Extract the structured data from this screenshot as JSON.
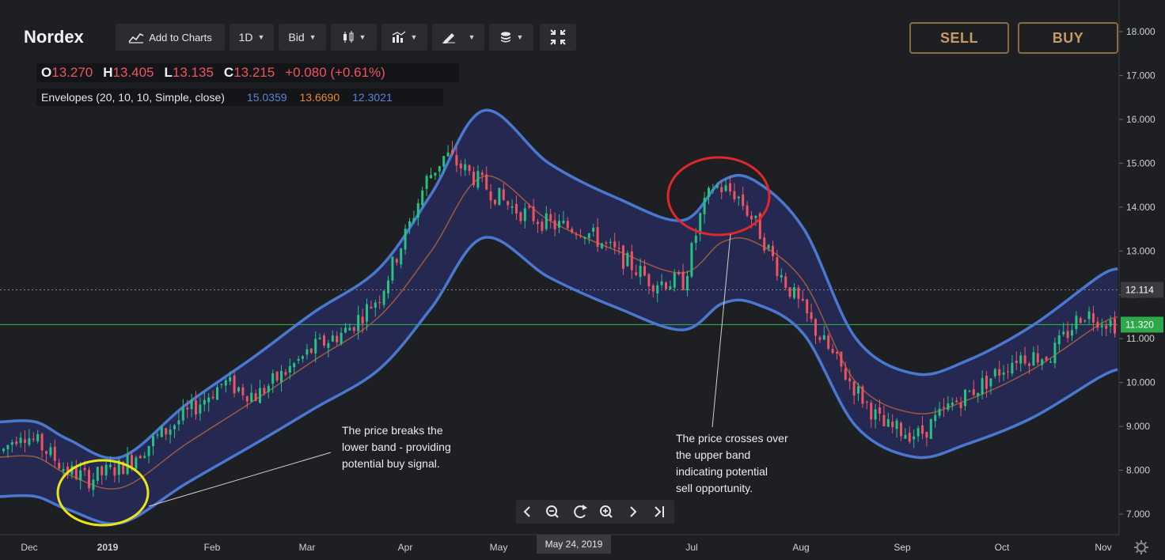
{
  "header": {
    "symbol": "Nordex"
  },
  "toolbar": {
    "add_to_charts": "Add to Charts",
    "interval": "1D",
    "price_type": "Bid",
    "sell_label": "SELL",
    "buy_label": "BUY"
  },
  "ohlc": {
    "o_key": "O",
    "o_val": "13.270",
    "h_key": "H",
    "h_val": "13.405",
    "l_key": "L",
    "l_val": "13.135",
    "c_key": "C",
    "c_val": "13.215",
    "change": "+0.080 (+0.61%)"
  },
  "indicator": {
    "label": "Envelopes (20, 10, 10, Simple, close)",
    "upper": "15.0359",
    "middle": "13.6690",
    "lower": "12.3021"
  },
  "annotations": {
    "buy_signal": [
      "The price breaks the",
      "lower band - providing",
      "potential buy signal."
    ],
    "sell_signal": [
      "The price crosses over",
      "the upper band",
      "indicating potential",
      "sell opportunity."
    ]
  },
  "crosshair_date": "May 24, 2019",
  "price_tags": {
    "hover": "12.114",
    "last": "11.320"
  },
  "colors": {
    "background": "#1e1f23",
    "up": "#26c281",
    "down": "#ef5360",
    "band": "#4a78d0",
    "band_fill": "#262a55",
    "middle_line": "#9c5a3c",
    "last_price_line": "#2ea84a",
    "buy_circle": "#e8e41c",
    "sell_circle": "#e0262e",
    "trade_button_border": "#8a6a45"
  },
  "icons": [
    "line-chart-icon",
    "candle-type-icon",
    "indicators-icon",
    "drawing-pen-icon",
    "layers-icon",
    "fullscreen-collapse-icon",
    "prev-icon",
    "zoom-out-icon",
    "reset-icon",
    "zoom-in-icon",
    "next-icon",
    "go-to-end-icon",
    "settings-gear-icon"
  ],
  "chart_data": {
    "type": "candlestick",
    "y_axis": {
      "side": "right",
      "range": [
        6.7,
        18.2
      ],
      "ticks": [
        "7.000",
        "8.000",
        "9.000",
        "10.000",
        "11.000",
        "12.000",
        "13.000",
        "14.000",
        "15.000",
        "16.000",
        "17.000",
        "18.000"
      ]
    },
    "x_axis": {
      "ticks": [
        "Dec",
        "2019",
        "Feb",
        "Mar",
        "Apr",
        "May",
        "Jul",
        "Aug",
        "Sep",
        "Oct",
        "Nov"
      ]
    },
    "series": [
      {
        "name": "Upper envelope",
        "x": [
          "2018-11-29",
          "2018-12-10",
          "2018-12-20",
          "2019-01-05",
          "2019-01-25",
          "2019-02-15",
          "2019-03-05",
          "2019-03-25",
          "2019-04-10",
          "2019-04-26",
          "2019-05-16",
          "2019-06-06",
          "2019-06-26",
          "2019-07-08",
          "2019-07-18",
          "2019-08-02",
          "2019-08-18",
          "2019-09-05",
          "2019-09-21",
          "2019-10-11",
          "2019-10-31",
          "2019-11-06"
        ],
        "values": [
          9.1,
          9.1,
          8.7,
          8.3,
          9.5,
          10.6,
          11.6,
          12.6,
          14.3,
          16.2,
          15.0,
          14.2,
          13.7,
          14.6,
          14.6,
          13.5,
          11.0,
          10.2,
          10.5,
          11.3,
          12.4,
          12.6
        ]
      },
      {
        "name": "Middle",
        "x": [
          "2018-11-29",
          "2018-12-10",
          "2018-12-20",
          "2019-01-05",
          "2019-01-25",
          "2019-02-15",
          "2019-03-05",
          "2019-03-25",
          "2019-04-10",
          "2019-04-26",
          "2019-05-16",
          "2019-06-06",
          "2019-06-26",
          "2019-07-08",
          "2019-07-18",
          "2019-08-02",
          "2019-08-18",
          "2019-09-05",
          "2019-09-21",
          "2019-10-11",
          "2019-10-31",
          "2019-11-06"
        ],
        "values": [
          8.3,
          8.3,
          7.9,
          7.6,
          8.6,
          9.6,
          10.5,
          11.5,
          13.0,
          14.7,
          13.7,
          13.0,
          12.5,
          13.2,
          13.2,
          12.3,
          10.0,
          9.3,
          9.6,
          10.3,
          11.3,
          11.5
        ]
      },
      {
        "name": "Lower envelope",
        "x": [
          "2018-11-29",
          "2018-12-10",
          "2018-12-20",
          "2019-01-05",
          "2019-01-25",
          "2019-02-15",
          "2019-03-05",
          "2019-03-25",
          "2019-04-10",
          "2019-04-26",
          "2019-05-16",
          "2019-06-06",
          "2019-06-26",
          "2019-07-08",
          "2019-07-18",
          "2019-08-02",
          "2019-08-18",
          "2019-09-05",
          "2019-09-21",
          "2019-10-11",
          "2019-10-31",
          "2019-11-06"
        ],
        "values": [
          7.4,
          7.4,
          7.1,
          6.8,
          7.7,
          8.6,
          9.4,
          10.3,
          11.7,
          13.3,
          12.4,
          11.7,
          11.2,
          11.8,
          11.8,
          11.1,
          9.0,
          8.3,
          8.6,
          9.2,
          10.1,
          10.3
        ]
      },
      {
        "name": "Price (close)",
        "x": [
          "2018-11-29",
          "2018-12-05",
          "2018-12-12",
          "2018-12-19",
          "2018-12-26",
          "2019-01-05",
          "2019-01-15",
          "2019-01-25",
          "2019-02-05",
          "2019-02-15",
          "2019-02-25",
          "2019-03-05",
          "2019-03-15",
          "2019-03-25",
          "2019-04-03",
          "2019-04-08",
          "2019-04-14",
          "2019-04-24",
          "2019-05-04",
          "2019-05-16",
          "2019-05-26",
          "2019-06-06",
          "2019-06-16",
          "2019-06-26",
          "2019-07-01",
          "2019-07-05",
          "2019-07-12",
          "2019-07-18",
          "2019-07-26",
          "2019-08-06",
          "2019-08-16",
          "2019-08-26",
          "2019-09-06",
          "2019-09-16",
          "2019-09-26",
          "2019-10-06",
          "2019-10-16",
          "2019-10-26",
          "2019-11-06"
        ],
        "values": [
          8.4,
          8.9,
          8.5,
          8.0,
          7.8,
          8.1,
          8.7,
          9.3,
          10.0,
          9.7,
          10.3,
          10.8,
          11.2,
          12.0,
          13.6,
          14.6,
          15.2,
          14.6,
          14.0,
          13.6,
          13.5,
          12.9,
          12.3,
          12.3,
          13.8,
          14.5,
          14.3,
          13.6,
          12.4,
          11.1,
          10.0,
          9.0,
          8.8,
          9.5,
          10.0,
          10.6,
          10.6,
          11.6,
          11.3
        ]
      }
    ],
    "horizontal_lines": [
      {
        "value": 11.32
      },
      {
        "value": 12.114
      }
    ],
    "grid": false,
    "legend": "none"
  }
}
